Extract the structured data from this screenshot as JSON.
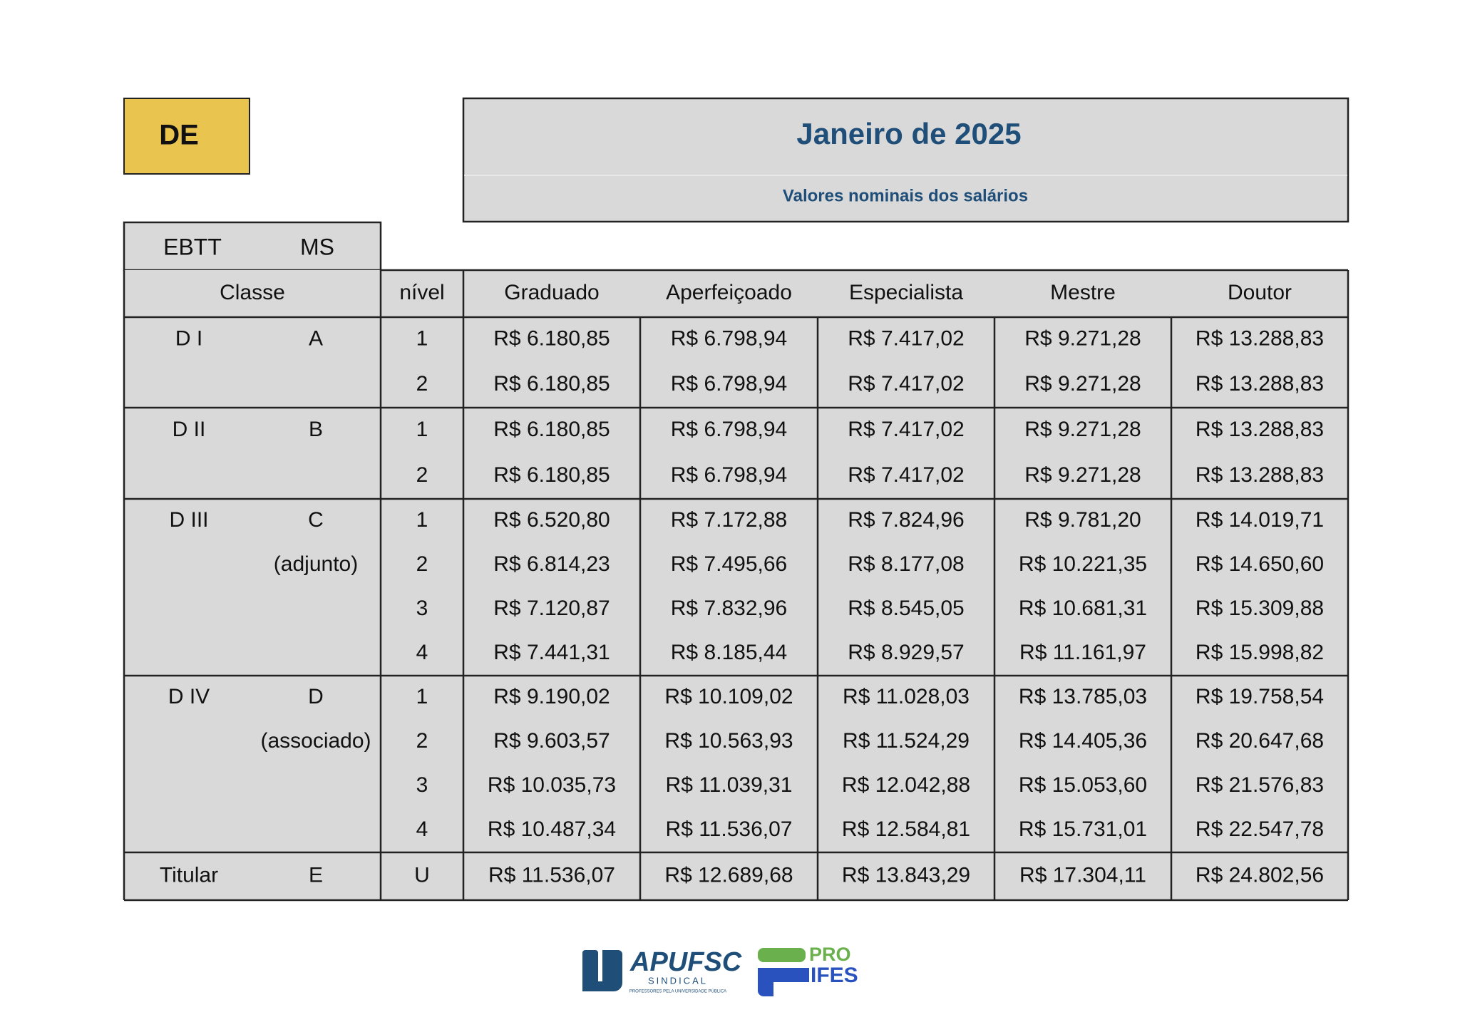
{
  "badge": "DE",
  "header": {
    "title": "Janeiro de 2025",
    "subtitle": "Valores nominais dos salários"
  },
  "career": {
    "ebtt": "EBTT",
    "ms": "MS"
  },
  "table": {
    "columns": [
      "Classe",
      "nível",
      "Graduado",
      "Aperfeiçoado",
      "Especialista",
      "Mestre",
      "Doutor"
    ],
    "groups": [
      {
        "class": "D I",
        "ms_class": "A",
        "rows": [
          {
            "nivel": "1",
            "values": [
              "R$ 6.180,85",
              "R$ 6.798,94",
              "R$ 7.417,02",
              "R$ 9.271,28",
              "R$ 13.288,83"
            ]
          },
          {
            "nivel": "2",
            "values": [
              "R$ 6.180,85",
              "R$ 6.798,94",
              "R$ 7.417,02",
              "R$ 9.271,28",
              "R$ 13.288,83"
            ]
          }
        ]
      },
      {
        "class": "D II",
        "ms_class": "B",
        "rows": [
          {
            "nivel": "1",
            "values": [
              "R$ 6.180,85",
              "R$ 6.798,94",
              "R$ 7.417,02",
              "R$ 9.271,28",
              "R$ 13.288,83"
            ]
          },
          {
            "nivel": "2",
            "values": [
              "R$ 6.180,85",
              "R$ 6.798,94",
              "R$ 7.417,02",
              "R$ 9.271,28",
              "R$ 13.288,83"
            ]
          }
        ]
      },
      {
        "class": "D III",
        "ms_class": "C",
        "ms_note": "(adjunto)",
        "rows": [
          {
            "nivel": "1",
            "values": [
              "R$ 6.520,80",
              "R$ 7.172,88",
              "R$ 7.824,96",
              "R$ 9.781,20",
              "R$ 14.019,71"
            ]
          },
          {
            "nivel": "2",
            "values": [
              "R$ 6.814,23",
              "R$ 7.495,66",
              "R$ 8.177,08",
              "R$ 10.221,35",
              "R$ 14.650,60"
            ]
          },
          {
            "nivel": "3",
            "values": [
              "R$ 7.120,87",
              "R$ 7.832,96",
              "R$ 8.545,05",
              "R$ 10.681,31",
              "R$ 15.309,88"
            ]
          },
          {
            "nivel": "4",
            "values": [
              "R$ 7.441,31",
              "R$ 8.185,44",
              "R$ 8.929,57",
              "R$ 11.161,97",
              "R$ 15.998,82"
            ]
          }
        ]
      },
      {
        "class": "D IV",
        "ms_class": "D",
        "ms_note": "(associado)",
        "rows": [
          {
            "nivel": "1",
            "values": [
              "R$ 9.190,02",
              "R$ 10.109,02",
              "R$ 11.028,03",
              "R$ 13.785,03",
              "R$ 19.758,54"
            ]
          },
          {
            "nivel": "2",
            "values": [
              "R$ 9.603,57",
              "R$ 10.563,93",
              "R$ 11.524,29",
              "R$ 14.405,36",
              "R$ 20.647,68"
            ]
          },
          {
            "nivel": "3",
            "values": [
              "R$ 10.035,73",
              "R$ 11.039,31",
              "R$ 12.042,88",
              "R$ 15.053,60",
              "R$ 21.576,83"
            ]
          },
          {
            "nivel": "4",
            "values": [
              "R$ 10.487,34",
              "R$ 11.536,07",
              "R$ 12.584,81",
              "R$ 15.731,01",
              "R$ 22.547,78"
            ]
          }
        ]
      },
      {
        "class": "Titular",
        "ms_class": "E",
        "rows": [
          {
            "nivel": "U",
            "values": [
              "R$ 11.536,07",
              "R$ 12.689,68",
              "R$ 13.843,29",
              "R$ 17.304,11",
              "R$ 24.802,56"
            ]
          }
        ]
      }
    ]
  },
  "logos": {
    "apufsc": "APUFSC",
    "apufsc_sub": "SINDICAL",
    "apufsc_tagline": "PROFESSORES PELA UNIVERSIDADE PÚBLICA",
    "proifes_top": "PRO",
    "proifes_bottom": "IFES"
  }
}
